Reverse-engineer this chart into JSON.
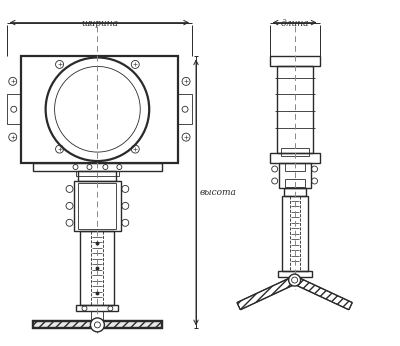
{
  "bg_color": "#ffffff",
  "line_color": "#2a2a2a",
  "dim_color": "#2a2a2a",
  "labels": {
    "width": "ширина",
    "length": "длина",
    "height": "высота"
  },
  "figsize": [
    4.0,
    3.46
  ],
  "dpi": 100
}
